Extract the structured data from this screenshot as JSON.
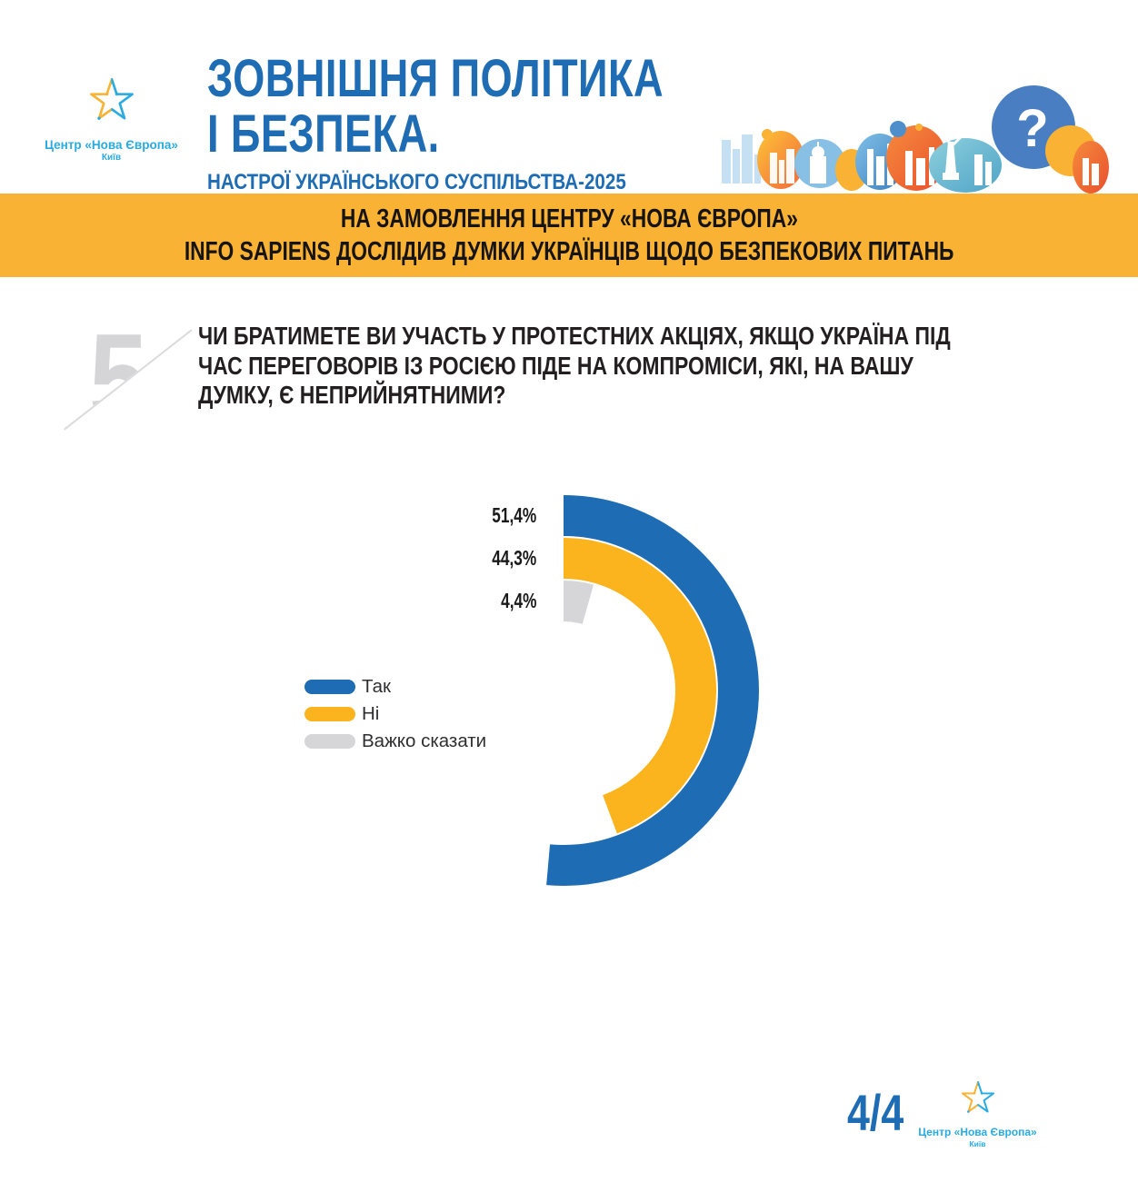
{
  "header": {
    "logo": {
      "org_name": "Центр «Нова Європа»",
      "city": "Київ"
    },
    "title_line1": "ЗОВНІШНЯ ПОЛІТИКА",
    "title_line2": "І БЕЗПЕКА.",
    "subtitle": "НАСТРОЇ УКРАЇНСЬКОГО СУСПІЛЬСТВА-2025",
    "title_color": "#1E6CB4"
  },
  "banner": {
    "bg_color": "#F9B233",
    "line1": "НА ЗАМОВЛЕННЯ ЦЕНТРУ «НОВА ЄВРОПА»",
    "line2": "INFO SAPIENS ДОСЛІДИВ ДУМКИ УКРАЇНЦІВ ЩОДО БЕЗПЕКОВИХ ПИТАНЬ"
  },
  "question": {
    "number": "5",
    "line1": "ЧИ БРАТИМЕТЕ ВИ УЧАСТЬ У ПРОТЕСТНИХ АКЦІЯХ, ЯКЩО УКРАЇНА ПІД",
    "line2": "ЧАС ПЕРЕГОВОРІВ ІЗ РОСІЄЮ ПІДЕ НА КОМПРОМІСИ, ЯКІ, НА ВАШУ",
    "line3": "ДУМКУ, Є НЕПРИЙНЯТНИМИ?"
  },
  "chart_data": {
    "type": "pie",
    "variant": "half-donut radial bars, start at 12 o'clock sweeping clockwise, share of 360°",
    "categories": [
      "Так",
      "Ні",
      "Важко сказати"
    ],
    "values": [
      51.4,
      44.3,
      4.4
    ],
    "value_labels": [
      "51,4%",
      "44,3%",
      "4,4%"
    ],
    "colors": [
      "#1E6CB4",
      "#FBB41D",
      "#D6D6D8"
    ],
    "legend_position": "left",
    "title": ""
  },
  "footer": {
    "page_indicator": "4/4",
    "logo": {
      "org_name": "Центр «Нова Європа»",
      "city": "Київ"
    }
  }
}
